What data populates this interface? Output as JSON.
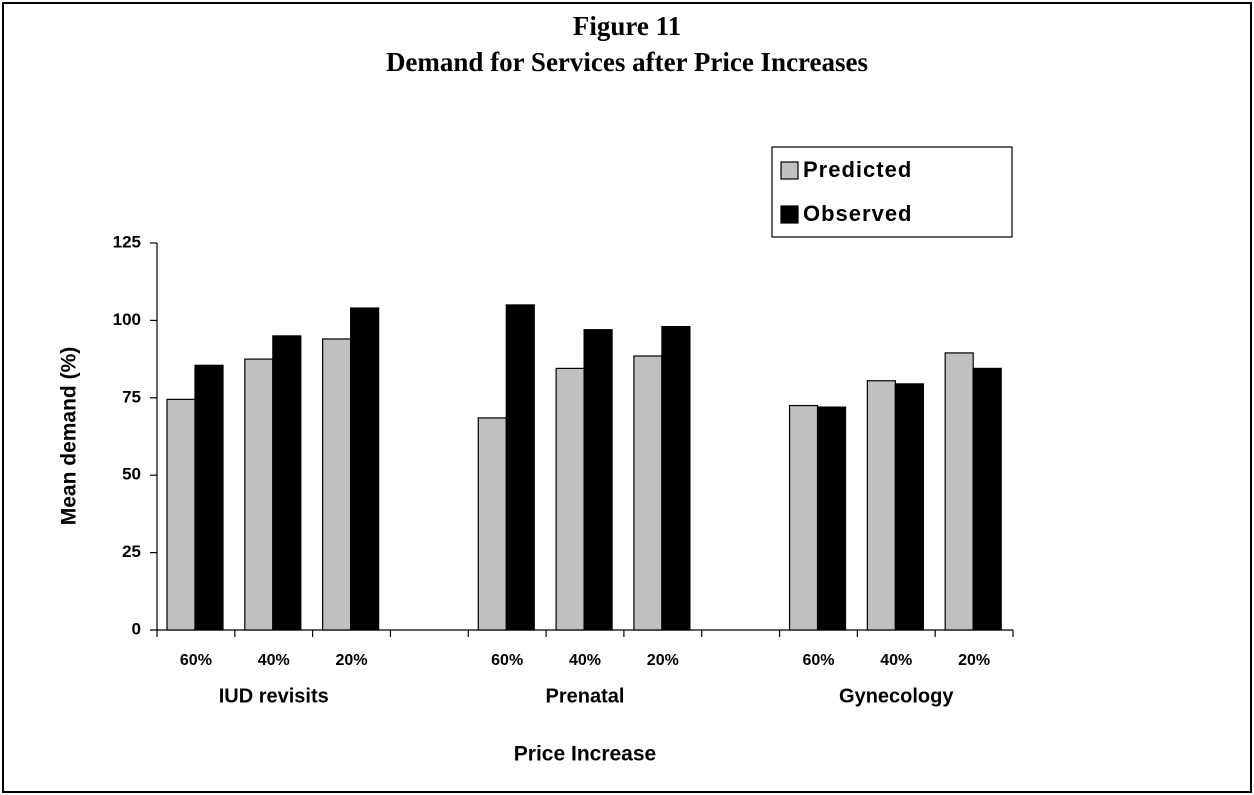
{
  "chart_data": {
    "type": "bar",
    "title": "Figure 11",
    "subtitle": "Demand for Services after Price Increases",
    "y_label": "Mean demand (%)",
    "x_label": "Price Increase",
    "categories": [
      "60%",
      "40%",
      "20%",
      null,
      "60%",
      "40%",
      "20%",
      null,
      "60%",
      "40%",
      "20%"
    ],
    "groups": [
      "IUD revisits",
      "Prenatal",
      "Gynecology"
    ],
    "series": [
      {
        "name": "Predicted",
        "color": "#c0c0c0",
        "values": [
          74.5,
          87.5,
          94,
          null,
          68.5,
          84.5,
          88.5,
          null,
          72.5,
          80.5,
          89.5
        ]
      },
      {
        "name": "Observed",
        "color": "#000000",
        "values": [
          85.5,
          95,
          104,
          null,
          105,
          97,
          98,
          null,
          72,
          79.5,
          84.5
        ]
      }
    ],
    "ylim": [
      0,
      125
    ],
    "yticks": [
      0,
      25,
      50,
      75,
      100,
      125
    ],
    "legend": "upper right"
  }
}
